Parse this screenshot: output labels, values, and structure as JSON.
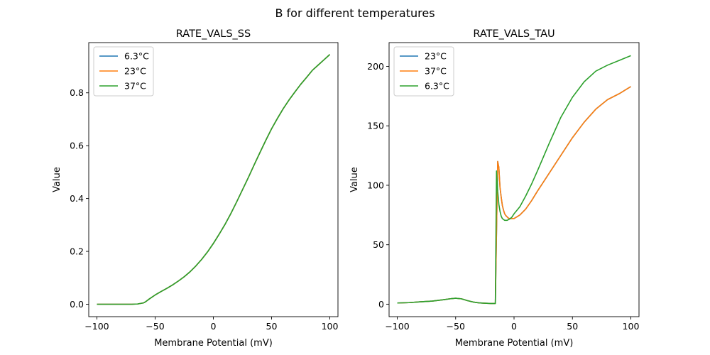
{
  "suptitle": "B for different temperatures",
  "chart_data": [
    {
      "type": "line",
      "title": "RATE_VALS_SS",
      "xlabel": "Membrane Potential (mV)",
      "ylabel": "Value",
      "xlim": [
        -107,
        107
      ],
      "ylim": [
        -0.047,
        0.99
      ],
      "xticks": [
        -100,
        -50,
        0,
        50,
        100
      ],
      "xtick_labels": [
        "−100",
        "−50",
        "0",
        "50",
        "100"
      ],
      "yticks": [
        0.0,
        0.2,
        0.4,
        0.6,
        0.8
      ],
      "ytick_labels": [
        "0.0",
        "0.2",
        "0.4",
        "0.6",
        "0.8"
      ],
      "legend": "top-left",
      "series": [
        {
          "name": "6.3°C",
          "color": "#1f77b4",
          "x": [
            -100,
            -90,
            -80,
            -70,
            -65,
            -60,
            -58,
            -55,
            -50,
            -45,
            -40,
            -35,
            -30,
            -25,
            -20,
            -15,
            -10,
            -5,
            0,
            5,
            10,
            15,
            20,
            25,
            30,
            35,
            40,
            45,
            50,
            55,
            60,
            65,
            70,
            75,
            80,
            85,
            90,
            95,
            100
          ],
          "y": [
            0.0,
            0.0,
            0.0,
            0.0,
            0.001,
            0.005,
            0.01,
            0.02,
            0.035,
            0.048,
            0.06,
            0.073,
            0.088,
            0.104,
            0.123,
            0.145,
            0.17,
            0.198,
            0.23,
            0.265,
            0.302,
            0.343,
            0.387,
            0.433,
            0.479,
            0.527,
            0.574,
            0.62,
            0.664,
            0.703,
            0.74,
            0.773,
            0.803,
            0.832,
            0.858,
            0.885,
            0.905,
            0.925,
            0.945
          ]
        },
        {
          "name": "23°C",
          "color": "#ff7f0e",
          "x": [
            -100,
            -90,
            -80,
            -70,
            -65,
            -60,
            -58,
            -55,
            -50,
            -45,
            -40,
            -35,
            -30,
            -25,
            -20,
            -15,
            -10,
            -5,
            0,
            5,
            10,
            15,
            20,
            25,
            30,
            35,
            40,
            45,
            50,
            55,
            60,
            65,
            70,
            75,
            80,
            85,
            90,
            95,
            100
          ],
          "y": [
            0.0,
            0.0,
            0.0,
            0.0,
            0.001,
            0.005,
            0.01,
            0.02,
            0.035,
            0.048,
            0.06,
            0.073,
            0.088,
            0.104,
            0.123,
            0.145,
            0.17,
            0.198,
            0.23,
            0.265,
            0.302,
            0.343,
            0.387,
            0.433,
            0.479,
            0.527,
            0.574,
            0.62,
            0.664,
            0.703,
            0.74,
            0.773,
            0.803,
            0.832,
            0.858,
            0.885,
            0.905,
            0.925,
            0.945
          ]
        },
        {
          "name": "37°C",
          "color": "#2ca02c",
          "x": [
            -100,
            -90,
            -80,
            -70,
            -65,
            -60,
            -58,
            -55,
            -50,
            -45,
            -40,
            -35,
            -30,
            -25,
            -20,
            -15,
            -10,
            -5,
            0,
            5,
            10,
            15,
            20,
            25,
            30,
            35,
            40,
            45,
            50,
            55,
            60,
            65,
            70,
            75,
            80,
            85,
            90,
            95,
            100
          ],
          "y": [
            0.0,
            0.0,
            0.0,
            0.0,
            0.001,
            0.005,
            0.01,
            0.02,
            0.035,
            0.048,
            0.06,
            0.073,
            0.088,
            0.104,
            0.123,
            0.145,
            0.17,
            0.198,
            0.23,
            0.265,
            0.302,
            0.343,
            0.387,
            0.433,
            0.479,
            0.527,
            0.574,
            0.62,
            0.664,
            0.703,
            0.74,
            0.773,
            0.803,
            0.832,
            0.858,
            0.885,
            0.905,
            0.925,
            0.945
          ]
        }
      ]
    },
    {
      "type": "line",
      "title": "RATE_VALS_TAU",
      "xlabel": "Membrane Potential (mV)",
      "ylabel": "Value",
      "xlim": [
        -107,
        107
      ],
      "ylim": [
        -10.5,
        220
      ],
      "xticks": [
        -100,
        -50,
        0,
        50,
        100
      ],
      "xtick_labels": [
        "−100",
        "−50",
        "0",
        "50",
        "100"
      ],
      "yticks": [
        0,
        50,
        100,
        150,
        200
      ],
      "ytick_labels": [
        "0",
        "50",
        "100",
        "150",
        "200"
      ],
      "legend": "top-left",
      "series": [
        {
          "name": "23°C",
          "color": "#1f77b4",
          "x": [
            -100,
            -90,
            -80,
            -70,
            -60,
            -55,
            -50,
            -45,
            -40,
            -35,
            -30,
            -25,
            -20,
            -16,
            -14,
            -13,
            -12,
            -11,
            -10,
            -9,
            -8,
            -7,
            -6,
            -5,
            -4,
            -2,
            0,
            5,
            10,
            15,
            20,
            30,
            40,
            50,
            60,
            70,
            80,
            90,
            100
          ],
          "y": [
            1,
            1.3,
            2,
            2.6,
            3.8,
            4.5,
            5,
            4.5,
            3,
            1.8,
            1.1,
            0.8,
            0.6,
            0.6,
            120,
            115,
            98,
            90,
            83,
            79,
            76,
            74.5,
            73.5,
            72.5,
            72,
            72,
            72,
            75,
            80,
            87,
            95,
            110,
            125,
            140,
            153,
            164,
            172,
            177,
            183
          ]
        },
        {
          "name": "37°C",
          "color": "#ff7f0e",
          "x": [
            -100,
            -90,
            -80,
            -70,
            -60,
            -55,
            -50,
            -45,
            -40,
            -35,
            -30,
            -25,
            -20,
            -16,
            -14,
            -13,
            -12,
            -11,
            -10,
            -9,
            -8,
            -7,
            -6,
            -5,
            -4,
            -2,
            0,
            5,
            10,
            15,
            20,
            30,
            40,
            50,
            60,
            70,
            80,
            90,
            100
          ],
          "y": [
            1,
            1.3,
            2,
            2.6,
            3.8,
            4.5,
            5,
            4.5,
            3,
            1.8,
            1.1,
            0.8,
            0.6,
            0.6,
            120,
            115,
            98,
            90,
            83,
            79,
            76,
            74.5,
            73.5,
            72.5,
            72,
            72,
            72,
            75,
            80,
            87,
            95,
            110,
            125,
            140,
            153,
            164,
            172,
            177,
            183
          ]
        },
        {
          "name": "6.3°C",
          "color": "#2ca02c",
          "x": [
            -100,
            -90,
            -80,
            -70,
            -60,
            -55,
            -50,
            -45,
            -40,
            -35,
            -30,
            -25,
            -20,
            -18,
            -16,
            -15,
            -14,
            -13,
            -12,
            -11,
            -10,
            -8,
            -6,
            -4,
            -2,
            0,
            5,
            10,
            15,
            20,
            30,
            40,
            50,
            60,
            70,
            80,
            90,
            100
          ],
          "y": [
            1,
            1.3,
            2,
            2.6,
            3.8,
            4.5,
            5,
            4.5,
            3,
            1.8,
            1.1,
            0.8,
            0.6,
            0.6,
            0.6,
            112,
            95,
            84,
            78,
            74,
            72,
            70.5,
            70.5,
            71.5,
            73,
            76,
            82,
            91,
            101,
            112,
            135,
            157,
            174,
            187,
            196,
            201,
            205,
            209
          ]
        }
      ]
    }
  ]
}
